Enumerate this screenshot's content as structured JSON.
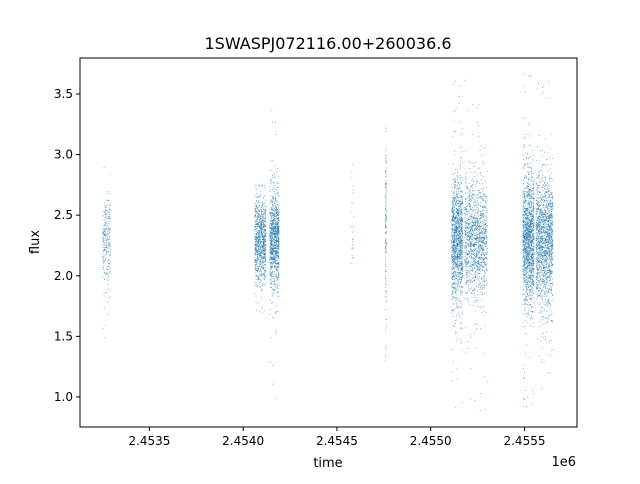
{
  "chart_data": {
    "type": "scatter",
    "title": "1SWASPJ072116.00+260036.6",
    "xlabel": "time",
    "ylabel": "flux",
    "x_offset_label": "1e6",
    "xlim": [
      2453130,
      2455780
    ],
    "ylim": [
      0.752,
      3.797
    ],
    "x_ticks": [
      2453500,
      2454000,
      2454500,
      2455000,
      2455500
    ],
    "x_tick_labels": [
      "2.4535",
      "2.4540",
      "2.4545",
      "2.4550",
      "2.4555"
    ],
    "y_ticks": [
      1.0,
      1.5,
      2.0,
      2.5,
      3.0,
      3.5
    ],
    "y_tick_labels": [
      "1.0",
      "1.5",
      "2.0",
      "2.5",
      "3.0",
      "3.5"
    ],
    "grid": false,
    "legend": "none",
    "marker_color": "#1f77b4",
    "clusters": [
      {
        "time_range": [
          2453250,
          2453290
        ],
        "flux_center": 2.3,
        "flux_spread": 0.2,
        "flux_range": [
          1.45,
          3.4
        ],
        "points": 250
      },
      {
        "time_range": [
          2454060,
          2454120
        ],
        "flux_center": 2.3,
        "flux_spread": 0.18,
        "flux_range": [
          1.7,
          2.75
        ],
        "points": 900
      },
      {
        "time_range": [
          2454140,
          2454190
        ],
        "flux_center": 2.3,
        "flux_spread": 0.2,
        "flux_range": [
          0.9,
          3.45
        ],
        "points": 1000
      },
      {
        "time_range": [
          2454575,
          2454590
        ],
        "flux_center": 2.4,
        "flux_spread": 0.25,
        "flux_range": [
          1.95,
          2.95
        ],
        "points": 25
      },
      {
        "time_range": [
          2454757,
          2454762
        ],
        "flux_center": 2.4,
        "flux_spread": 0.35,
        "flux_range": [
          1.3,
          3.55
        ],
        "points": 150
      },
      {
        "time_range": [
          2455110,
          2455170
        ],
        "flux_center": 2.3,
        "flux_spread": 0.25,
        "flux_range": [
          0.88,
          3.62
        ],
        "points": 1300
      },
      {
        "time_range": [
          2455180,
          2455300
        ],
        "flux_center": 2.3,
        "flux_spread": 0.25,
        "flux_range": [
          0.88,
          3.62
        ],
        "points": 1300
      },
      {
        "time_range": [
          2455490,
          2455550
        ],
        "flux_center": 2.3,
        "flux_spread": 0.27,
        "flux_range": [
          0.9,
          3.67
        ],
        "points": 1500
      },
      {
        "time_range": [
          2455560,
          2455650
        ],
        "flux_center": 2.3,
        "flux_spread": 0.27,
        "flux_range": [
          0.9,
          3.67
        ],
        "points": 1600
      }
    ]
  }
}
